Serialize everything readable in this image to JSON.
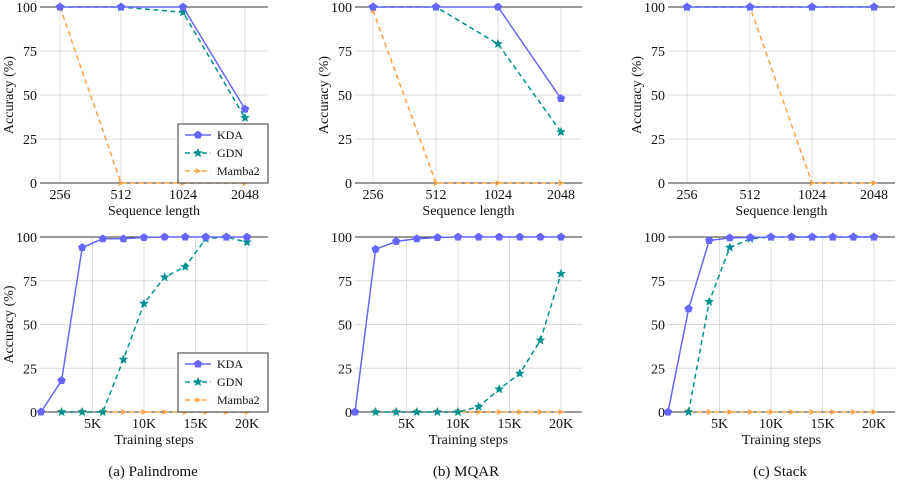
{
  "figure": {
    "captions": [
      "(a) Palindrome",
      "(b) MQAR",
      "(c) Stack"
    ],
    "legend": {
      "entries": [
        {
          "name": "KDA",
          "color": "#6666ff",
          "style": "solid",
          "marker": "pentagon"
        },
        {
          "name": "GDN",
          "color": "#009090",
          "style": "dashed",
          "marker": "star"
        },
        {
          "name": "Mamba2",
          "color": "#ffa040",
          "style": "dashed",
          "marker": "arrow"
        }
      ]
    }
  },
  "chart_data": [
    {
      "type": "line",
      "panel": "Palindrome",
      "row": "top",
      "xlabel": "Sequence length",
      "ylabel": "Accuracy (%)",
      "categories": [
        "256",
        "512",
        "1024",
        "2048"
      ],
      "yticks": [
        "0",
        "25",
        "50",
        "75",
        "100"
      ],
      "ylim": [
        0,
        100
      ],
      "grid": true,
      "legend": "bottom-right",
      "series": [
        {
          "name": "KDA",
          "values": [
            100,
            100,
            100,
            42
          ]
        },
        {
          "name": "GDN",
          "values": [
            100,
            100,
            97,
            37
          ]
        },
        {
          "name": "Mamba2",
          "values": [
            100,
            0,
            0,
            0
          ]
        }
      ]
    },
    {
      "type": "line",
      "panel": "MQAR",
      "row": "top",
      "xlabel": "Sequence length",
      "ylabel": "Accuracy (%)",
      "categories": [
        "256",
        "512",
        "1024",
        "2048"
      ],
      "yticks": [
        "0",
        "25",
        "50",
        "75",
        "100"
      ],
      "ylim": [
        0,
        100
      ],
      "grid": true,
      "legend": "none",
      "series": [
        {
          "name": "KDA",
          "values": [
            100,
            100,
            100,
            48
          ]
        },
        {
          "name": "GDN",
          "values": [
            100,
            100,
            79,
            29
          ]
        },
        {
          "name": "Mamba2",
          "values": [
            98,
            0,
            0,
            0
          ]
        }
      ]
    },
    {
      "type": "line",
      "panel": "Stack",
      "row": "top",
      "xlabel": "Sequence length",
      "ylabel": "Accuracy (%)",
      "categories": [
        "256",
        "512",
        "1024",
        "2048"
      ],
      "yticks": [
        "0",
        "25",
        "50",
        "75",
        "100"
      ],
      "ylim": [
        0,
        100
      ],
      "grid": true,
      "legend": "none",
      "series": [
        {
          "name": "KDA",
          "values": [
            100,
            100,
            100,
            100
          ]
        },
        {
          "name": "GDN",
          "values": [
            100,
            100,
            100,
            100
          ]
        },
        {
          "name": "Mamba2",
          "values": [
            100,
            100,
            0,
            0
          ]
        }
      ]
    },
    {
      "type": "line",
      "panel": "Palindrome",
      "row": "bottom",
      "xlabel": "Training steps",
      "ylabel": "Accuracy (%)",
      "x": [
        0,
        2000,
        4000,
        6000,
        8000,
        10000,
        12000,
        14000,
        16000,
        18000,
        20000
      ],
      "xticks": [
        {
          "value": 5000,
          "label": "5K"
        },
        {
          "value": 10000,
          "label": "10K"
        },
        {
          "value": 15000,
          "label": "15K"
        },
        {
          "value": 20000,
          "label": "20K"
        }
      ],
      "xlim": [
        0,
        21000
      ],
      "yticks": [
        "0",
        "25",
        "50",
        "75",
        "100"
      ],
      "ylim": [
        0,
        100
      ],
      "grid": true,
      "legend": "bottom-right",
      "series": [
        {
          "name": "KDA",
          "x": [
            0,
            2000,
            4000,
            6000,
            8000,
            10000,
            12000,
            14000,
            16000,
            18000,
            20000
          ],
          "values": [
            0,
            18,
            94,
            99,
            99,
            99.7,
            100,
            100,
            100,
            100,
            100
          ]
        },
        {
          "name": "GDN",
          "x": [
            2000,
            4000,
            6000,
            8000,
            10000,
            12000,
            14000,
            16000,
            18000,
            20000
          ],
          "values": [
            0,
            0,
            0,
            30,
            62,
            77,
            83,
            99,
            100,
            97
          ]
        },
        {
          "name": "Mamba2",
          "x": [
            2000,
            4000,
            6000,
            8000,
            10000,
            12000,
            14000,
            16000,
            18000,
            20000
          ],
          "values": [
            0,
            0,
            0,
            0,
            0,
            0,
            0,
            0,
            0,
            0
          ]
        }
      ]
    },
    {
      "type": "line",
      "panel": "MQAR",
      "row": "bottom",
      "xlabel": "Training steps",
      "ylabel": "",
      "x": [
        0,
        2000,
        4000,
        6000,
        8000,
        10000,
        12000,
        14000,
        16000,
        18000,
        20000
      ],
      "xticks": [
        {
          "value": 5000,
          "label": "5K"
        },
        {
          "value": 10000,
          "label": "10K"
        },
        {
          "value": 15000,
          "label": "15K"
        },
        {
          "value": 20000,
          "label": "20K"
        }
      ],
      "xlim": [
        0,
        21000
      ],
      "yticks": [
        "0",
        "25",
        "50",
        "75",
        "100"
      ],
      "ylim": [
        0,
        100
      ],
      "grid": true,
      "legend": "none",
      "series": [
        {
          "name": "KDA",
          "x": [
            0,
            2000,
            4000,
            6000,
            8000,
            10000,
            12000,
            14000,
            16000,
            18000,
            20000
          ],
          "values": [
            0,
            93,
            97.5,
            99,
            99.7,
            100,
            100,
            100,
            100,
            100,
            100
          ]
        },
        {
          "name": "GDN",
          "x": [
            2000,
            4000,
            6000,
            8000,
            10000,
            12000,
            14000,
            16000,
            18000,
            20000
          ],
          "values": [
            0,
            0,
            0,
            0,
            0,
            3,
            13,
            22,
            41,
            79
          ]
        },
        {
          "name": "Mamba2",
          "x": [
            2000,
            4000,
            6000,
            8000,
            10000,
            12000,
            14000,
            16000,
            18000,
            20000
          ],
          "values": [
            0,
            0,
            0,
            0,
            0,
            0,
            0,
            0,
            0,
            0
          ]
        }
      ]
    },
    {
      "type": "line",
      "panel": "Stack",
      "row": "bottom",
      "xlabel": "Training steps",
      "ylabel": "",
      "x": [
        0,
        2000,
        4000,
        6000,
        8000,
        10000,
        12000,
        14000,
        16000,
        18000,
        20000
      ],
      "xticks": [
        {
          "value": 5000,
          "label": "5K"
        },
        {
          "value": 10000,
          "label": "10K"
        },
        {
          "value": 15000,
          "label": "15K"
        },
        {
          "value": 20000,
          "label": "20K"
        }
      ],
      "xlim": [
        0,
        21000
      ],
      "yticks": [
        "0",
        "25",
        "50",
        "75",
        "100"
      ],
      "ylim": [
        0,
        100
      ],
      "grid": true,
      "legend": "none",
      "series": [
        {
          "name": "KDA",
          "x": [
            0,
            2000,
            4000,
            6000,
            8000,
            10000,
            12000,
            14000,
            16000,
            18000,
            20000
          ],
          "values": [
            0,
            59,
            98,
            99.5,
            99.7,
            100,
            100,
            100,
            100,
            100,
            100
          ]
        },
        {
          "name": "GDN",
          "x": [
            2000,
            4000,
            6000,
            8000,
            10000,
            12000,
            14000,
            16000,
            18000,
            20000
          ],
          "values": [
            0,
            63,
            94,
            99,
            100,
            100,
            100,
            100,
            100,
            100
          ]
        },
        {
          "name": "Mamba2",
          "x": [
            2000,
            4000,
            6000,
            8000,
            10000,
            12000,
            14000,
            16000,
            18000,
            20000
          ],
          "values": [
            0,
            0,
            0,
            0,
            0,
            0,
            0,
            0,
            0,
            0
          ]
        }
      ]
    }
  ]
}
